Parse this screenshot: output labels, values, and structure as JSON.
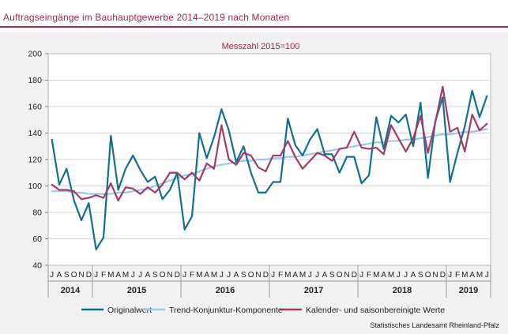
{
  "chart_data": {
    "type": "line",
    "title": "Auftragseingänge im Bauhauptgewerbe 2014–2019 nach Monaten",
    "subtitle": "Messzahl 2015=100",
    "ylim": [
      40,
      200
    ],
    "yticks": [
      40,
      60,
      80,
      100,
      120,
      140,
      160,
      180,
      200
    ],
    "grid": true,
    "legend_position": "bottom",
    "month_labels": [
      "J",
      "A",
      "S",
      "O",
      "N",
      "D",
      "J",
      "F",
      "M",
      "A",
      "M",
      "J",
      "J",
      "A",
      "S",
      "O",
      "N",
      "D",
      "J",
      "F",
      "M",
      "A",
      "M",
      "J",
      "J",
      "A",
      "S",
      "O",
      "N",
      "D",
      "J",
      "F",
      "M",
      "A",
      "M",
      "J",
      "J",
      "A",
      "S",
      "O",
      "N",
      "D",
      "J",
      "F",
      "M",
      "A",
      "M",
      "J",
      "J",
      "A",
      "S",
      "O",
      "N",
      "D",
      "J",
      "F",
      "M",
      "A",
      "M",
      "J"
    ],
    "years": [
      {
        "label": "2014",
        "start": 0,
        "count": 6
      },
      {
        "label": "2015",
        "start": 6,
        "count": 12
      },
      {
        "label": "2016",
        "start": 18,
        "count": 12
      },
      {
        "label": "2017",
        "start": 30,
        "count": 12
      },
      {
        "label": "2018",
        "start": 42,
        "count": 12
      },
      {
        "label": "2019",
        "start": 54,
        "count": 6
      }
    ],
    "series": [
      {
        "name": "Originalwert",
        "color": "#12708f",
        "width": 2.2,
        "values": [
          135,
          101,
          113,
          89,
          74,
          87,
          52,
          61,
          138,
          97,
          113,
          123,
          112,
          103,
          107,
          90,
          97,
          110,
          67,
          77,
          140,
          121,
          137,
          158,
          142,
          118,
          130,
          110,
          95,
          95,
          103,
          103,
          151,
          131,
          123,
          135,
          143,
          124,
          124,
          110,
          122,
          122,
          102,
          108,
          152,
          128,
          153,
          148,
          154,
          130,
          163,
          106,
          149,
          167,
          103,
          125,
          145,
          172,
          152,
          168
        ]
      },
      {
        "name": "Trend-Konjunktur-Komponente",
        "color": "#9cc8e1",
        "width": 2.2,
        "values": [
          96,
          96,
          96,
          95,
          95,
          94,
          94,
          94,
          94,
          95,
          95,
          96,
          97,
          98,
          100,
          102,
          104,
          106,
          108,
          109,
          111,
          113,
          115,
          116,
          117,
          118,
          119,
          119,
          120,
          120,
          121,
          121,
          122,
          122,
          123,
          124,
          125,
          126,
          127,
          128,
          129,
          130,
          131,
          132,
          133,
          133,
          134,
          134,
          135,
          135,
          136,
          137,
          138,
          139,
          139,
          140,
          141,
          141,
          142,
          143
        ]
      },
      {
        "name": "Kalender- und saisonbereinigte Werte",
        "color": "#a33a6b",
        "width": 2.2,
        "values": [
          101,
          97,
          97,
          96,
          90,
          91,
          93,
          91,
          102,
          89,
          99,
          98,
          94,
          99,
          95,
          101,
          110,
          110,
          105,
          110,
          104,
          117,
          113,
          146,
          120,
          116,
          125,
          123,
          114,
          111,
          123,
          123,
          134,
          122,
          113,
          119,
          125,
          123,
          119,
          128,
          129,
          141,
          129,
          128,
          129,
          124,
          146,
          136,
          126,
          136,
          153,
          125,
          148,
          175,
          141,
          144,
          126,
          154,
          142,
          147
        ]
      }
    ]
  },
  "source": "Statistisches Landesamt Rheinland-Pfalz"
}
